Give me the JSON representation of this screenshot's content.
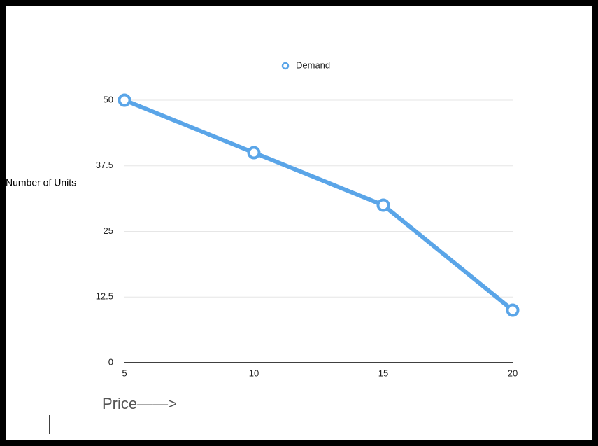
{
  "chart_data": {
    "type": "line",
    "x_label": "Price——>",
    "y_label": "Number of Units",
    "x": [
      5,
      10,
      15,
      20
    ],
    "series": [
      {
        "name": "Demand",
        "color": "#5aa5e8",
        "values": [
          50,
          40,
          30,
          10
        ]
      }
    ],
    "xlim": [
      5,
      20
    ],
    "xticks": [
      5,
      10,
      15,
      20
    ],
    "ylim": [
      0,
      50
    ],
    "yticks": [
      0,
      12.5,
      25,
      37.5,
      50
    ],
    "grid": true,
    "legend": "top"
  }
}
